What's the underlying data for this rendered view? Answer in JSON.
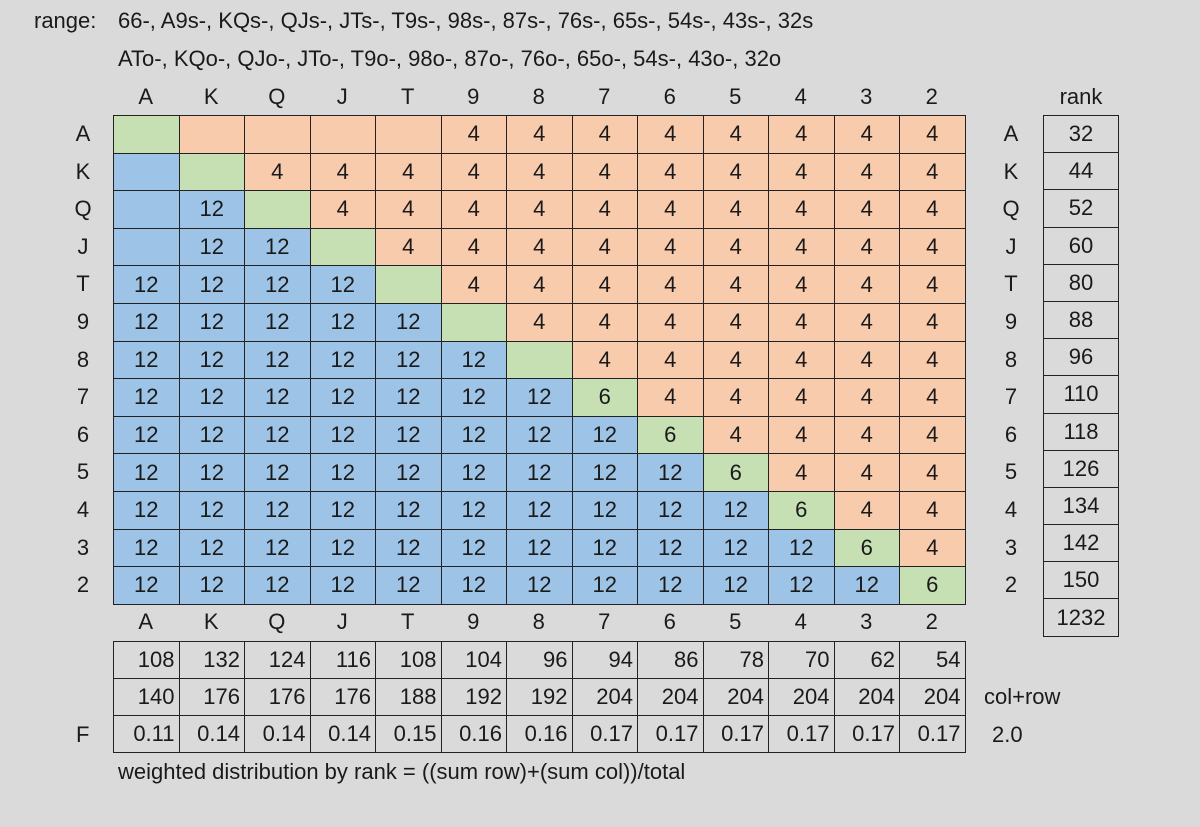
{
  "range_label": "range:",
  "range_line1": "66-, A9s-, KQs-, QJs-, JTs-, T9s-, 98s-, 87s-, 76s-, 65s-, 54s-, 43s-, 32s",
  "range_line2": "ATo-, KQo-, QJo-, JTo-, T9o-, 98o-, 87o-, 76o-, 65o-, 54s-, 43o-, 32o",
  "ranks": [
    "A",
    "K",
    "Q",
    "J",
    "T",
    "9",
    "8",
    "7",
    "6",
    "5",
    "4",
    "3",
    "2"
  ],
  "rank_header": "rank",
  "colors": {
    "suited": "#f8cbad",
    "offsuit": "#9dc3e6",
    "pair": "#c6e0b4"
  },
  "matrix": [
    [
      "",
      "",
      "",
      "",
      "",
      "4",
      "4",
      "4",
      "4",
      "4",
      "4",
      "4",
      "4"
    ],
    [
      "",
      "",
      "4",
      "4",
      "4",
      "4",
      "4",
      "4",
      "4",
      "4",
      "4",
      "4",
      "4"
    ],
    [
      "",
      "12",
      "",
      "4",
      "4",
      "4",
      "4",
      "4",
      "4",
      "4",
      "4",
      "4",
      "4"
    ],
    [
      "",
      "12",
      "12",
      "",
      "4",
      "4",
      "4",
      "4",
      "4",
      "4",
      "4",
      "4",
      "4"
    ],
    [
      "12",
      "12",
      "12",
      "12",
      "",
      "4",
      "4",
      "4",
      "4",
      "4",
      "4",
      "4",
      "4"
    ],
    [
      "12",
      "12",
      "12",
      "12",
      "12",
      "",
      "4",
      "4",
      "4",
      "4",
      "4",
      "4",
      "4"
    ],
    [
      "12",
      "12",
      "12",
      "12",
      "12",
      "12",
      "",
      "4",
      "4",
      "4",
      "4",
      "4",
      "4"
    ],
    [
      "12",
      "12",
      "12",
      "12",
      "12",
      "12",
      "12",
      "6",
      "4",
      "4",
      "4",
      "4",
      "4"
    ],
    [
      "12",
      "12",
      "12",
      "12",
      "12",
      "12",
      "12",
      "12",
      "6",
      "4",
      "4",
      "4",
      "4"
    ],
    [
      "12",
      "12",
      "12",
      "12",
      "12",
      "12",
      "12",
      "12",
      "12",
      "6",
      "4",
      "4",
      "4"
    ],
    [
      "12",
      "12",
      "12",
      "12",
      "12",
      "12",
      "12",
      "12",
      "12",
      "12",
      "6",
      "4",
      "4"
    ],
    [
      "12",
      "12",
      "12",
      "12",
      "12",
      "12",
      "12",
      "12",
      "12",
      "12",
      "12",
      "6",
      "4"
    ],
    [
      "12",
      "12",
      "12",
      "12",
      "12",
      "12",
      "12",
      "12",
      "12",
      "12",
      "12",
      "12",
      "6"
    ]
  ],
  "rank_totals": [
    "32",
    "44",
    "52",
    "60",
    "80",
    "88",
    "96",
    "110",
    "118",
    "126",
    "134",
    "142",
    "150",
    "1232"
  ],
  "col_sums": [
    "108",
    "132",
    "124",
    "116",
    "108",
    "104",
    "96",
    "94",
    "86",
    "78",
    "70",
    "62",
    "54"
  ],
  "col_row": [
    "140",
    "176",
    "176",
    "176",
    "188",
    "192",
    "192",
    "204",
    "204",
    "204",
    "204",
    "204",
    "204"
  ],
  "col_row_label": "col+row",
  "f_label": "F",
  "f_values": [
    "0.11",
    "0.14",
    "0.14",
    "0.14",
    "0.15",
    "0.16",
    "0.16",
    "0.17",
    "0.17",
    "0.17",
    "0.17",
    "0.17",
    "0.17"
  ],
  "f_total": "2.0",
  "footnote": "weighted distribution by rank = ((sum row)+(sum col))/total"
}
